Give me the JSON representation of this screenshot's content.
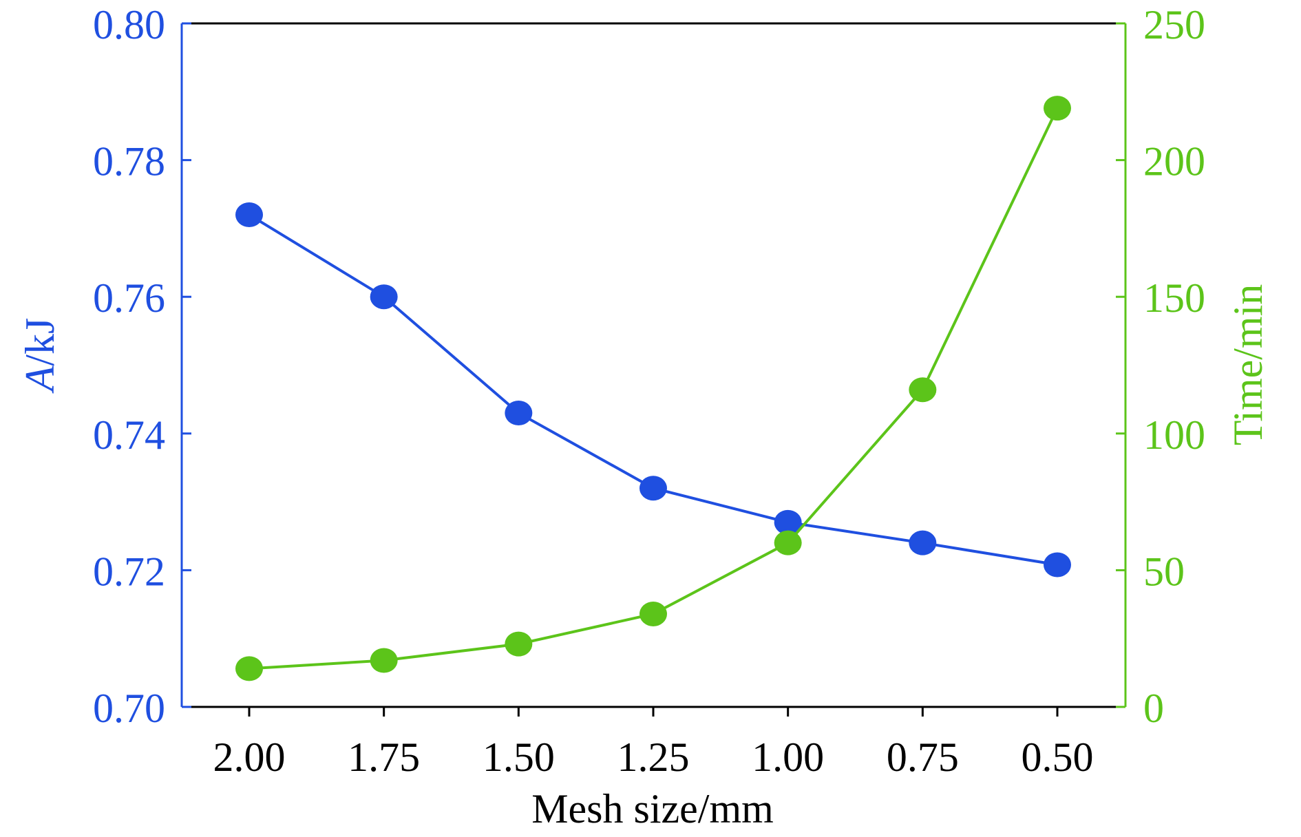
{
  "chart_data": {
    "type": "line",
    "title": "",
    "xlabel": "Mesh size/mm",
    "ylabel_left": "A/kJ",
    "ylabel_left_parts": {
      "italic": "A",
      "rest": "/kJ"
    },
    "ylabel_right": "Time/min",
    "x": [
      2.0,
      1.75,
      1.5,
      1.25,
      1.0,
      0.75,
      0.5
    ],
    "x_tick_labels": [
      "2.00",
      "1.75",
      "1.50",
      "1.25",
      "1.00",
      "0.75",
      "0.50"
    ],
    "x_reversed": true,
    "ylim_left": [
      0.7,
      0.8
    ],
    "y_left_ticks": [
      "0.70",
      "0.72",
      "0.74",
      "0.76",
      "0.78",
      "0.80"
    ],
    "ylim_right": [
      0,
      250
    ],
    "y_right_ticks": [
      "0",
      "50",
      "100",
      "150",
      "200",
      "250"
    ],
    "grid": false,
    "series": [
      {
        "axis": "left",
        "color": "#1f4fe0",
        "values": [
          0.772,
          0.76,
          0.743,
          0.732,
          0.727,
          0.724,
          0.7208
        ]
      },
      {
        "axis": "right",
        "color": "#5cc41a",
        "values": [
          14,
          17,
          23,
          34,
          60,
          116,
          219
        ]
      }
    ],
    "colors": {
      "left_axis": "#1f4fe0",
      "right_axis": "#5cc41a",
      "frame": "#000000"
    }
  }
}
